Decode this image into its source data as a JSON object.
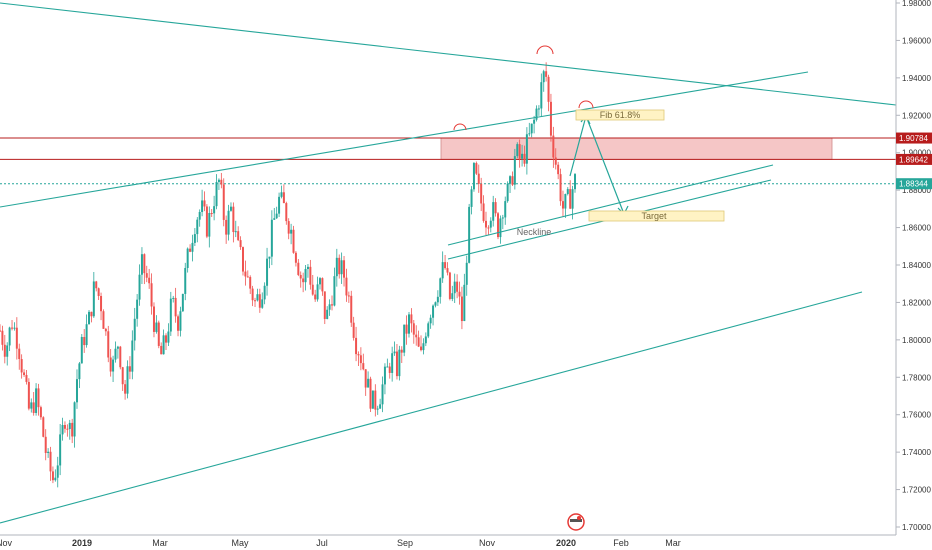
{
  "chart_data": {
    "type": "candlestick",
    "symbol_unit": "price",
    "yaxis": {
      "min": 1.7,
      "max": 1.98,
      "ticks": [
        "1.98000",
        "1.96000",
        "1.94000",
        "1.92000",
        "1.90000",
        "1.88000",
        "1.86000",
        "1.84000",
        "1.82000",
        "1.80000",
        "1.78000",
        "1.76000",
        "1.74000",
        "1.72000",
        "1.70000"
      ],
      "tick_values": [
        1.98,
        1.96,
        1.94,
        1.92,
        1.9,
        1.88,
        1.86,
        1.84,
        1.82,
        1.8,
        1.78,
        1.76,
        1.74,
        1.72,
        1.7
      ]
    },
    "xaxis": {
      "labels": [
        "Nov",
        "2019",
        "Mar",
        "May",
        "Jul",
        "Sep",
        "Nov",
        "2020",
        "Feb",
        "Mar"
      ],
      "bold_labels": [
        "2019",
        "2020"
      ]
    },
    "price_tags": [
      {
        "label": "1.90784",
        "value": 1.90784,
        "color": "#b71c1c"
      },
      {
        "label": "1.89642",
        "value": 1.89642,
        "color": "#b71c1c"
      },
      {
        "label": "1.88344",
        "value": 1.88344,
        "color": "#26a69a"
      }
    ],
    "zone": {
      "low": 1.89642,
      "high": 1.90784,
      "color": "#f5c6c6"
    },
    "annotations": [
      {
        "text": "Fib 61.8%",
        "value": 1.92
      },
      {
        "text": "Target",
        "value": 1.865
      },
      {
        "text": "Neckline",
        "value": 1.857
      }
    ],
    "price_path": [
      [
        0,
        1.805
      ],
      [
        1,
        1.795
      ],
      [
        2,
        1.81
      ],
      [
        3,
        1.8
      ],
      [
        4,
        1.78
      ],
      [
        5,
        1.76
      ],
      [
        6,
        1.77
      ],
      [
        7,
        1.755
      ],
      [
        8,
        1.735
      ],
      [
        9,
        1.725
      ],
      [
        10,
        1.74
      ],
      [
        11,
        1.76
      ],
      [
        12,
        1.75
      ],
      [
        13,
        1.78
      ],
      [
        14,
        1.8
      ],
      [
        15,
        1.81
      ],
      [
        16,
        1.83
      ],
      [
        17,
        1.82
      ],
      [
        18,
        1.8
      ],
      [
        19,
        1.785
      ],
      [
        20,
        1.8
      ],
      [
        21,
        1.77
      ],
      [
        22,
        1.79
      ],
      [
        23,
        1.82
      ],
      [
        24,
        1.84
      ],
      [
        25,
        1.83
      ],
      [
        26,
        1.81
      ],
      [
        27,
        1.79
      ],
      [
        28,
        1.8
      ],
      [
        29,
        1.82
      ],
      [
        30,
        1.81
      ],
      [
        31,
        1.83
      ],
      [
        32,
        1.85
      ],
      [
        33,
        1.865
      ],
      [
        34,
        1.87
      ],
      [
        35,
        1.86
      ],
      [
        36,
        1.875
      ],
      [
        37,
        1.885
      ],
      [
        38,
        1.86
      ],
      [
        39,
        1.87
      ],
      [
        40,
        1.85
      ],
      [
        41,
        1.84
      ],
      [
        42,
        1.83
      ],
      [
        43,
        1.82
      ],
      [
        44,
        1.825
      ],
      [
        45,
        1.84
      ],
      [
        46,
        1.86
      ],
      [
        47,
        1.875
      ],
      [
        48,
        1.87
      ],
      [
        49,
        1.86
      ],
      [
        50,
        1.845
      ],
      [
        51,
        1.83
      ],
      [
        52,
        1.84
      ],
      [
        53,
        1.82
      ],
      [
        54,
        1.83
      ],
      [
        55,
        1.81
      ],
      [
        56,
        1.825
      ],
      [
        57,
        1.84
      ],
      [
        58,
        1.835
      ],
      [
        59,
        1.82
      ],
      [
        60,
        1.8
      ],
      [
        61,
        1.79
      ],
      [
        62,
        1.775
      ],
      [
        63,
        1.765
      ],
      [
        64,
        1.77
      ],
      [
        65,
        1.78
      ],
      [
        66,
        1.79
      ],
      [
        67,
        1.785
      ],
      [
        68,
        1.8
      ],
      [
        69,
        1.81
      ],
      [
        70,
        1.8
      ],
      [
        71,
        1.79
      ],
      [
        72,
        1.81
      ],
      [
        73,
        1.82
      ],
      [
        74,
        1.83
      ],
      [
        75,
        1.84
      ],
      [
        76,
        1.82
      ],
      [
        77,
        1.83
      ],
      [
        78,
        1.81
      ],
      [
        79,
        1.86
      ],
      [
        80,
        1.89
      ],
      [
        81,
        1.875
      ],
      [
        82,
        1.865
      ],
      [
        83,
        1.87
      ],
      [
        84,
        1.86
      ],
      [
        85,
        1.875
      ],
      [
        86,
        1.88
      ],
      [
        87,
        1.9
      ],
      [
        88,
        1.895
      ],
      [
        89,
        1.905
      ],
      [
        90,
        1.915
      ],
      [
        91,
        1.93
      ],
      [
        92,
        1.945
      ],
      [
        93,
        1.91
      ],
      [
        94,
        1.89
      ],
      [
        95,
        1.87
      ],
      [
        96,
        1.875
      ],
      [
        97,
        1.885
      ]
    ]
  }
}
